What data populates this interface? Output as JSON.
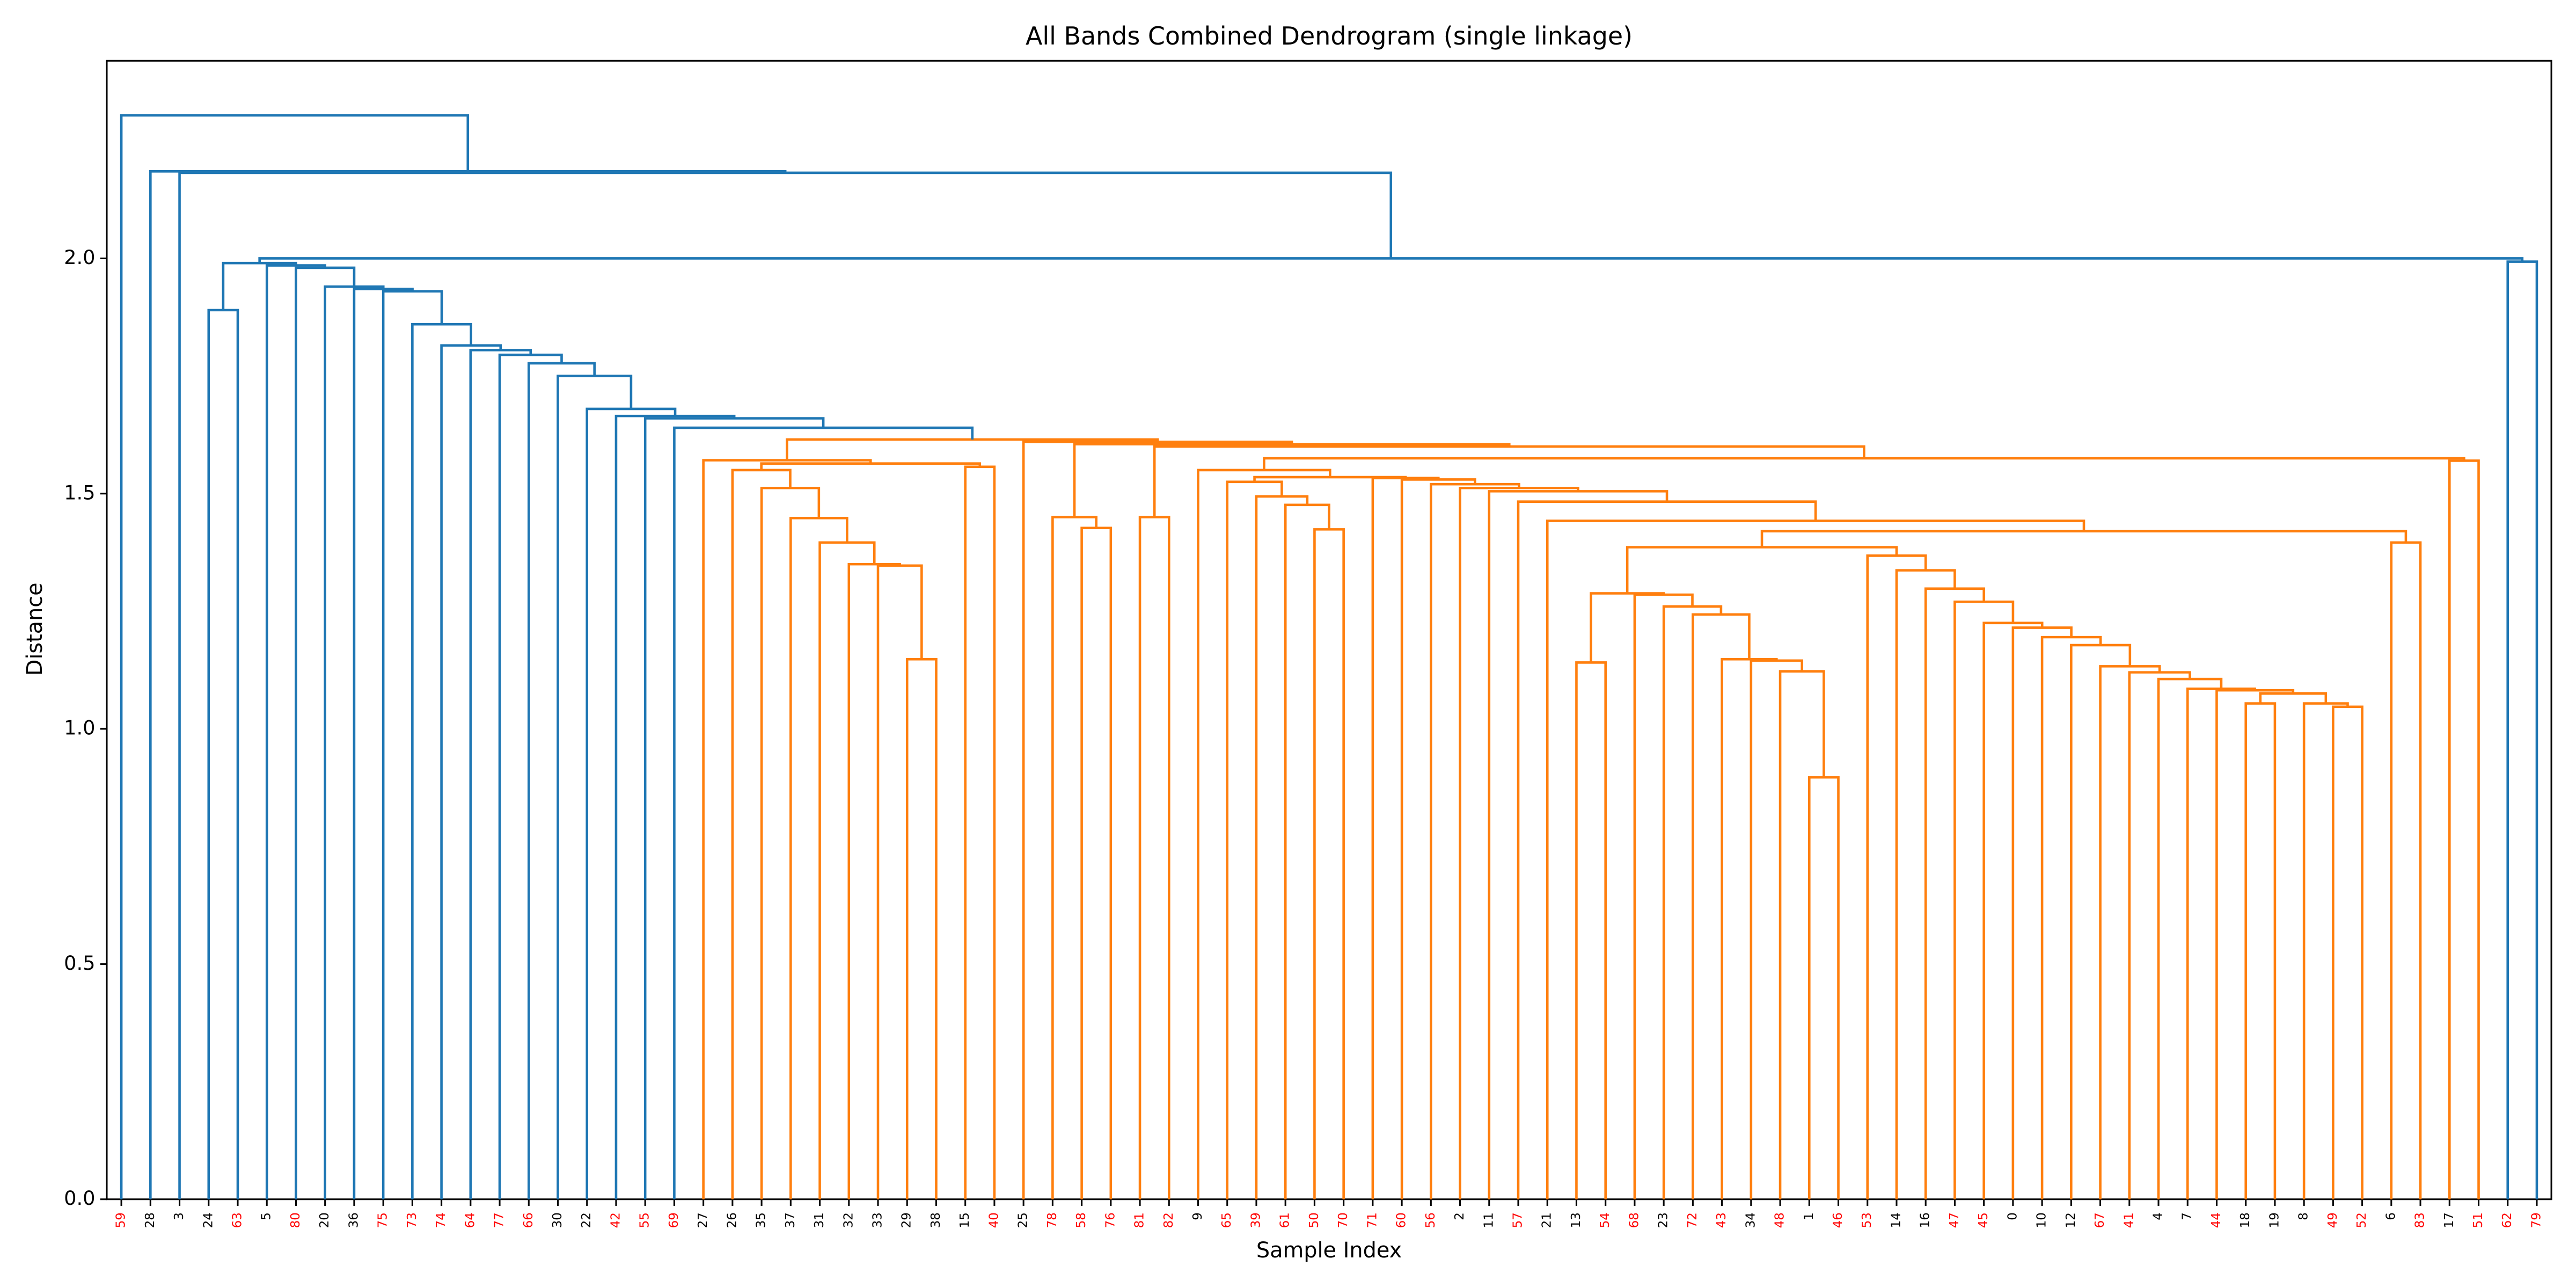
{
  "chart_data": {
    "type": "dendrogram",
    "title": "All Bands Combined Dendrogram (single linkage)",
    "x_label": "Sample Index",
    "y_label": "Distance",
    "ylim": [
      0,
      2.42
    ],
    "yticks": [
      {
        "value": 0,
        "label": "0.0"
      },
      {
        "value": 0.5,
        "label": "0.5"
      },
      {
        "value": 1,
        "label": "1.0"
      },
      {
        "value": 1.5,
        "label": "1.5"
      },
      {
        "value": 2,
        "label": "2.0"
      }
    ],
    "categories": [
      "59",
      "28",
      "3",
      "24",
      "63",
      "5",
      "80",
      "20",
      "36",
      "75",
      "73",
      "74",
      "64",
      "77",
      "66",
      "30",
      "22",
      "42",
      "55",
      "69",
      "27",
      "26",
      "35",
      "37",
      "31",
      "32",
      "33",
      "29",
      "38",
      "15",
      "40",
      "25",
      "78",
      "58",
      "76",
      "81",
      "82",
      "9",
      "65",
      "39",
      "61",
      "50",
      "70",
      "71",
      "60",
      "56",
      "2",
      "11",
      "57",
      "21",
      "13",
      "54",
      "68",
      "23",
      "72",
      "43",
      "34",
      "48",
      "1",
      "46",
      "53",
      "14",
      "16",
      "47",
      "45",
      "0",
      "10",
      "12",
      "67",
      "41",
      "4",
      "7",
      "44",
      "18",
      "19",
      "8",
      "49",
      "52",
      "6",
      "83",
      "17",
      "51",
      "62",
      "79"
    ],
    "label_colors": [
      "red",
      "black",
      "black",
      "black",
      "red",
      "black",
      "red",
      "black",
      "black",
      "red",
      "red",
      "red",
      "red",
      "red",
      "red",
      "black",
      "black",
      "red",
      "red",
      "red",
      "black",
      "black",
      "black",
      "black",
      "black",
      "black",
      "black",
      "black",
      "black",
      "black",
      "red",
      "black",
      "red",
      "red",
      "red",
      "red",
      "red",
      "black",
      "red",
      "red",
      "red",
      "red",
      "red",
      "red",
      "red",
      "red",
      "black",
      "black",
      "red",
      "black",
      "black",
      "red",
      "red",
      "black",
      "red",
      "red",
      "black",
      "red",
      "black",
      "red",
      "red",
      "black",
      "black",
      "red",
      "red",
      "black",
      "black",
      "black",
      "red",
      "red",
      "black",
      "black",
      "red",
      "black",
      "black",
      "black",
      "red",
      "red",
      "black",
      "red",
      "black",
      "red",
      "red",
      "red"
    ],
    "links": [
      [
        58,
        59,
        0.897,
        "#ff7f0e"
      ],
      [
        57,
        84,
        1.122,
        "#ff7f0e"
      ],
      [
        56,
        85,
        1.145,
        "#ff7f0e"
      ],
      [
        55,
        86,
        1.148,
        "#ff7f0e"
      ],
      [
        54,
        87,
        1.243,
        "#ff7f0e"
      ],
      [
        53,
        88,
        1.26,
        "#ff7f0e"
      ],
      [
        52,
        89,
        1.285,
        "#ff7f0e"
      ],
      [
        50,
        51,
        1.141,
        "#ff7f0e"
      ],
      [
        91,
        90,
        1.288,
        "#ff7f0e"
      ],
      [
        76,
        77,
        1.047,
        "#ff7f0e"
      ],
      [
        75,
        93,
        1.054,
        "#ff7f0e"
      ],
      [
        73,
        74,
        1.054,
        "#ff7f0e"
      ],
      [
        95,
        94,
        1.075,
        "#ff7f0e"
      ],
      [
        72,
        96,
        1.082,
        "#ff7f0e"
      ],
      [
        71,
        97,
        1.085,
        "#ff7f0e"
      ],
      [
        70,
        98,
        1.106,
        "#ff7f0e"
      ],
      [
        69,
        99,
        1.12,
        "#ff7f0e"
      ],
      [
        68,
        100,
        1.133,
        "#ff7f0e"
      ],
      [
        67,
        101,
        1.178,
        "#ff7f0e"
      ],
      [
        66,
        102,
        1.195,
        "#ff7f0e"
      ],
      [
        65,
        103,
        1.215,
        "#ff7f0e"
      ],
      [
        64,
        104,
        1.225,
        "#ff7f0e"
      ],
      [
        63,
        105,
        1.27,
        "#ff7f0e"
      ],
      [
        62,
        106,
        1.298,
        "#ff7f0e"
      ],
      [
        61,
        107,
        1.337,
        "#ff7f0e"
      ],
      [
        60,
        108,
        1.368,
        "#ff7f0e"
      ],
      [
        92,
        109,
        1.386,
        "#ff7f0e"
      ],
      [
        78,
        79,
        1.396,
        "#ff7f0e"
      ],
      [
        110,
        111,
        1.42,
        "#ff7f0e"
      ],
      [
        49,
        112,
        1.442,
        "#ff7f0e"
      ],
      [
        48,
        113,
        1.483,
        "#ff7f0e"
      ],
      [
        47,
        114,
        1.505,
        "#ff7f0e"
      ],
      [
        46,
        115,
        1.512,
        "#ff7f0e"
      ],
      [
        45,
        116,
        1.52,
        "#ff7f0e"
      ],
      [
        44,
        117,
        1.53,
        "#ff7f0e"
      ],
      [
        43,
        118,
        1.533,
        "#ff7f0e"
      ],
      [
        41,
        42,
        1.424,
        "#ff7f0e"
      ],
      [
        40,
        120,
        1.476,
        "#ff7f0e"
      ],
      [
        39,
        121,
        1.494,
        "#ff7f0e"
      ],
      [
        38,
        122,
        1.525,
        "#ff7f0e"
      ],
      [
        123,
        119,
        1.535,
        "#ff7f0e"
      ],
      [
        37,
        124,
        1.55,
        "#ff7f0e"
      ],
      [
        80,
        81,
        1.57,
        "#ff7f0e"
      ],
      [
        125,
        126,
        1.575,
        "#ff7f0e"
      ],
      [
        35,
        36,
        1.45,
        "#ff7f0e"
      ],
      [
        128,
        127,
        1.6,
        "#ff7f0e"
      ],
      [
        33,
        34,
        1.427,
        "#ff7f0e"
      ],
      [
        32,
        130,
        1.45,
        "#ff7f0e"
      ],
      [
        131,
        129,
        1.605,
        "#ff7f0e"
      ],
      [
        31,
        132,
        1.61,
        "#ff7f0e"
      ],
      [
        27,
        28,
        1.148,
        "#ff7f0e"
      ],
      [
        26,
        134,
        1.347,
        "#ff7f0e"
      ],
      [
        25,
        135,
        1.35,
        "#ff7f0e"
      ],
      [
        24,
        136,
        1.396,
        "#ff7f0e"
      ],
      [
        23,
        137,
        1.448,
        "#ff7f0e"
      ],
      [
        22,
        138,
        1.512,
        "#ff7f0e"
      ],
      [
        21,
        139,
        1.55,
        "#ff7f0e"
      ],
      [
        29,
        30,
        1.557,
        "#ff7f0e"
      ],
      [
        140,
        141,
        1.564,
        "#ff7f0e"
      ],
      [
        20,
        142,
        1.571,
        "#ff7f0e"
      ],
      [
        143,
        133,
        1.615,
        "#ff7f0e"
      ],
      [
        19,
        144,
        1.64,
        "#1f77b4"
      ],
      [
        18,
        145,
        1.66,
        "#1f77b4"
      ],
      [
        17,
        146,
        1.665,
        "#1f77b4"
      ],
      [
        16,
        147,
        1.68,
        "#1f77b4"
      ],
      [
        15,
        148,
        1.75,
        "#1f77b4"
      ],
      [
        14,
        149,
        1.777,
        "#1f77b4"
      ],
      [
        13,
        150,
        1.795,
        "#1f77b4"
      ],
      [
        12,
        151,
        1.805,
        "#1f77b4"
      ],
      [
        11,
        152,
        1.815,
        "#1f77b4"
      ],
      [
        10,
        153,
        1.86,
        "#1f77b4"
      ],
      [
        9,
        154,
        1.93,
        "#1f77b4"
      ],
      [
        8,
        155,
        1.935,
        "#1f77b4"
      ],
      [
        7,
        156,
        1.94,
        "#1f77b4"
      ],
      [
        6,
        157,
        1.98,
        "#1f77b4"
      ],
      [
        5,
        158,
        1.985,
        "#1f77b4"
      ],
      [
        3,
        4,
        1.89,
        "#1f77b4"
      ],
      [
        160,
        159,
        1.99,
        "#1f77b4"
      ],
      [
        82,
        83,
        1.993,
        "#1f77b4"
      ],
      [
        161,
        162,
        2.0,
        "#1f77b4"
      ],
      [
        2,
        163,
        2.182,
        "#1f77b4"
      ],
      [
        1,
        164,
        2.185,
        "#1f77b4"
      ],
      [
        0,
        165,
        2.304,
        "#1f77b4"
      ]
    ]
  }
}
